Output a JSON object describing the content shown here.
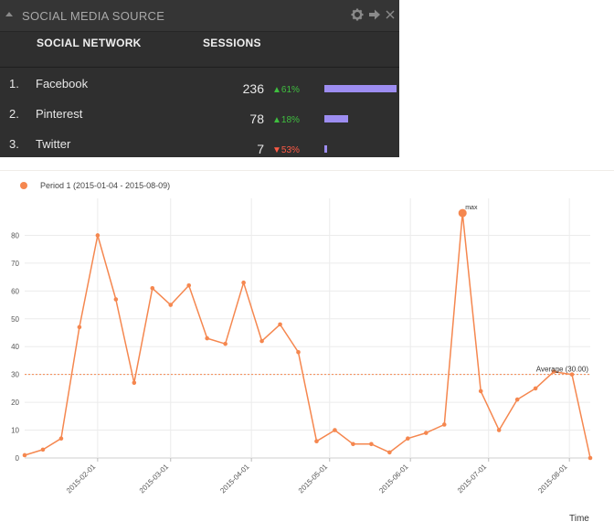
{
  "widget": {
    "title": "SOCIAL MEDIA SOURCE",
    "columns": {
      "network": "SOCIAL NETWORK",
      "sessions": "SESSIONS"
    },
    "rows": [
      {
        "rank": "1.",
        "network": "Facebook",
        "sessions": "236",
        "change": "▲61%",
        "trend": "up",
        "bar_fraction": 1.0
      },
      {
        "rank": "2.",
        "network": "Pinterest",
        "sessions": "78",
        "change": "▲18%",
        "trend": "up",
        "bar_fraction": 0.33
      },
      {
        "rank": "3.",
        "network": "Twitter",
        "sessions": "7",
        "change": "▼53%",
        "trend": "down",
        "bar_fraction": 0.03
      }
    ],
    "icons": [
      "collapse-icon",
      "gear-icon",
      "arrow-right-icon",
      "close-icon"
    ],
    "colors": {
      "panel": "#2f2f2f",
      "bar": "#9d8df1",
      "up": "#3fbf3f",
      "down": "#ff5a45"
    }
  },
  "chart_data": {
    "type": "line",
    "legend": "Period 1 (2015-01-04 - 2015-08-09)",
    "xlabel": "Time",
    "ylabel": "",
    "ylim": [
      0,
      90
    ],
    "yticks": [
      0,
      10,
      20,
      30,
      40,
      50,
      60,
      70,
      80
    ],
    "grid": true,
    "color": "#f5874f",
    "x": [
      "2015-01-04",
      "2015-01-11",
      "2015-01-18",
      "2015-01-25",
      "2015-02-01",
      "2015-02-08",
      "2015-02-15",
      "2015-02-22",
      "2015-03-01",
      "2015-03-08",
      "2015-03-15",
      "2015-03-22",
      "2015-03-29",
      "2015-04-05",
      "2015-04-12",
      "2015-04-19",
      "2015-04-26",
      "2015-05-03",
      "2015-05-10",
      "2015-05-17",
      "2015-05-24",
      "2015-05-31",
      "2015-06-07",
      "2015-06-14",
      "2015-06-21",
      "2015-06-28",
      "2015-07-05",
      "2015-07-12",
      "2015-07-19",
      "2015-07-26",
      "2015-08-02",
      "2015-08-09"
    ],
    "values": [
      1,
      3,
      7,
      47,
      80,
      57,
      27,
      61,
      55,
      62,
      43,
      41,
      63,
      42,
      48,
      38,
      6,
      10,
      5,
      5,
      2,
      7,
      9,
      12,
      88,
      24,
      10,
      21,
      25,
      31,
      30,
      0
    ],
    "xtick_labels": [
      "2015-02-01",
      "2015-03-01",
      "2015-04-01",
      "2015-05-01",
      "2015-06-01",
      "2015-07-01",
      "2015-08-01"
    ],
    "average": {
      "value": 30,
      "label": "Average (30.00)"
    },
    "max_label": "max"
  }
}
